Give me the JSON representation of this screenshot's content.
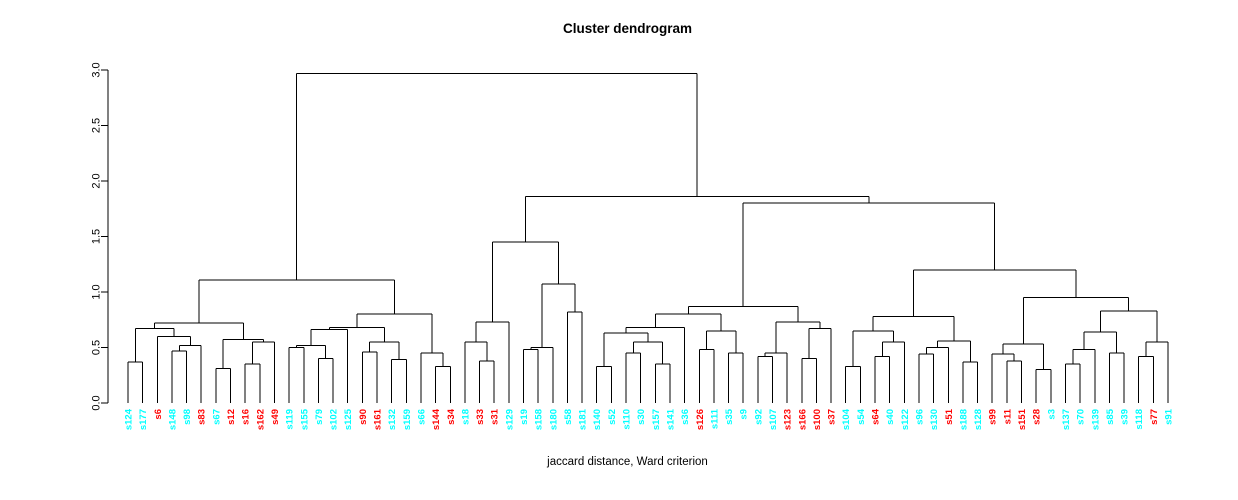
{
  "chart_data": {
    "type": "dendrogram",
    "title": "Cluster dendrogram",
    "xlabel": "jaccard distance, Ward criterion",
    "ylim": [
      0,
      3
    ],
    "yticks": [
      "0.0",
      "0.5",
      "1.0",
      "1.5",
      "2.0",
      "2.5",
      "3.0"
    ],
    "grid": false,
    "line_color": "#000000",
    "palette": {
      "r": "#ff0000",
      "c": "#00ffff"
    },
    "leaves": [
      [
        "s124",
        "c"
      ],
      [
        "s177",
        "c"
      ],
      [
        "s6",
        "r"
      ],
      [
        "s148",
        "c"
      ],
      [
        "s98",
        "c"
      ],
      [
        "s83",
        "r"
      ],
      [
        "s67",
        "c"
      ],
      [
        "s12",
        "r"
      ],
      [
        "s16",
        "r"
      ],
      [
        "s162",
        "r"
      ],
      [
        "s49",
        "r"
      ],
      [
        "s119",
        "c"
      ],
      [
        "s155",
        "c"
      ],
      [
        "s79",
        "c"
      ],
      [
        "s102",
        "c"
      ],
      [
        "s125",
        "c"
      ],
      [
        "s90",
        "r"
      ],
      [
        "s161",
        "r"
      ],
      [
        "s132",
        "c"
      ],
      [
        "s159",
        "c"
      ],
      [
        "s66",
        "c"
      ],
      [
        "s144",
        "r"
      ],
      [
        "s34",
        "r"
      ],
      [
        "s18",
        "c"
      ],
      [
        "s33",
        "r"
      ],
      [
        "s31",
        "r"
      ],
      [
        "s129",
        "c"
      ],
      [
        "s19",
        "c"
      ],
      [
        "s158",
        "c"
      ],
      [
        "s180",
        "c"
      ],
      [
        "s58",
        "c"
      ],
      [
        "s181",
        "c"
      ],
      [
        "s140",
        "c"
      ],
      [
        "s52",
        "c"
      ],
      [
        "s110",
        "c"
      ],
      [
        "s30",
        "c"
      ],
      [
        "s157",
        "c"
      ],
      [
        "s141",
        "c"
      ],
      [
        "s36",
        "c"
      ],
      [
        "s126",
        "r"
      ],
      [
        "s111",
        "c"
      ],
      [
        "s35",
        "c"
      ],
      [
        "s9",
        "c"
      ],
      [
        "s92",
        "c"
      ],
      [
        "s107",
        "c"
      ],
      [
        "s123",
        "r"
      ],
      [
        "s166",
        "r"
      ],
      [
        "s100",
        "r"
      ],
      [
        "s37",
        "r"
      ],
      [
        "s104",
        "c"
      ],
      [
        "s54",
        "c"
      ],
      [
        "s64",
        "r"
      ],
      [
        "s40",
        "c"
      ],
      [
        "s122",
        "c"
      ],
      [
        "s96",
        "c"
      ],
      [
        "s130",
        "c"
      ],
      [
        "s51",
        "r"
      ],
      [
        "s188",
        "c"
      ],
      [
        "s128",
        "c"
      ],
      [
        "s99",
        "r"
      ],
      [
        "s11",
        "r"
      ],
      [
        "s151",
        "r"
      ],
      [
        "s28",
        "r"
      ],
      [
        "s3",
        "c"
      ],
      [
        "s137",
        "c"
      ],
      [
        "s70",
        "c"
      ],
      [
        "s139",
        "c"
      ],
      [
        "s85",
        "c"
      ],
      [
        "s39",
        "c"
      ],
      [
        "s118",
        "c"
      ],
      [
        "s77",
        "r"
      ],
      [
        "s91",
        "c"
      ]
    ],
    "merge_tree": [
      2.97,
      [
        1.11,
        [
          0.72,
          [
            0.67,
            [
              0.37,
              0,
              1
            ],
            [
              0.6,
              2,
              [
                0.52,
                [
                  0.47,
                  3,
                  4
                ],
                5
              ]
            ]
          ],
          [
            0.57,
            [
              0.31,
              6,
              7
            ],
            [
              0.55,
              [
                0.35,
                8,
                9
              ],
              10
            ]
          ]
        ],
        [
          0.8,
          [
            0.68,
            [
              0.66,
              [
                0.52,
                [
                  0.5,
                  11,
                  12
                ],
                [
                  0.4,
                  13,
                  14
                ]
              ],
              15
            ],
            [
              0.55,
              [
                0.46,
                16,
                17
              ],
              [
                0.39,
                18,
                19
              ]
            ]
          ],
          [
            0.45,
            20,
            [
              0.33,
              21,
              22
            ]
          ]
        ]
      ],
      [
        1.86,
        [
          1.45,
          [
            0.73,
            [
              0.55,
              23,
              [
                0.38,
                24,
                25
              ]
            ],
            26
          ],
          [
            1.07,
            [
              0.5,
              [
                0.48,
                27,
                28
              ],
              29
            ],
            [
              0.82,
              30,
              31
            ]
          ]
        ],
        [
          1.8,
          [
            0.87,
            [
              0.8,
              [
                0.68,
                [
                  0.63,
                  [
                    0.33,
                    32,
                    33
                  ],
                  [
                    0.55,
                    [
                      0.45,
                      34,
                      35
                    ],
                    [
                      0.35,
                      36,
                      37
                    ]
                  ]
                ],
                38
              ],
              [
                0.65,
                [
                  0.48,
                  39,
                  40
                ],
                [
                  0.45,
                  41,
                  42
                ]
              ]
            ],
            [
              0.73,
              [
                0.45,
                [
                  0.42,
                  43,
                  44
                ],
                45
              ],
              [
                0.67,
                [
                  0.4,
                  46,
                  47
                ],
                48
              ]
            ]
          ],
          [
            1.2,
            [
              0.78,
              [
                0.65,
                [
                  0.33,
                  49,
                  50
                ],
                [
                  0.55,
                  [
                    0.42,
                    51,
                    52
                  ],
                  53
                ]
              ],
              [
                0.56,
                [
                  0.5,
                  [
                    0.44,
                    54,
                    55
                  ],
                  56
                ],
                [
                  0.37,
                  57,
                  58
                ]
              ]
            ],
            [
              0.95,
              [
                0.53,
                [
                  0.44,
                  59,
                  [
                    0.38,
                    60,
                    61
                  ]
                ],
                [
                  0.3,
                  62,
                  63
                ]
              ],
              [
                0.83,
                [
                  0.64,
                  [
                    0.48,
                    [
                      0.35,
                      64,
                      65
                    ],
                    66
                  ],
                  [
                    0.45,
                    67,
                    68
                  ]
                ],
                [
                  0.55,
                  [
                    0.42,
                    69,
                    70
                  ],
                  71
                ]
              ]
            ]
          ]
        ]
      ]
    ]
  }
}
